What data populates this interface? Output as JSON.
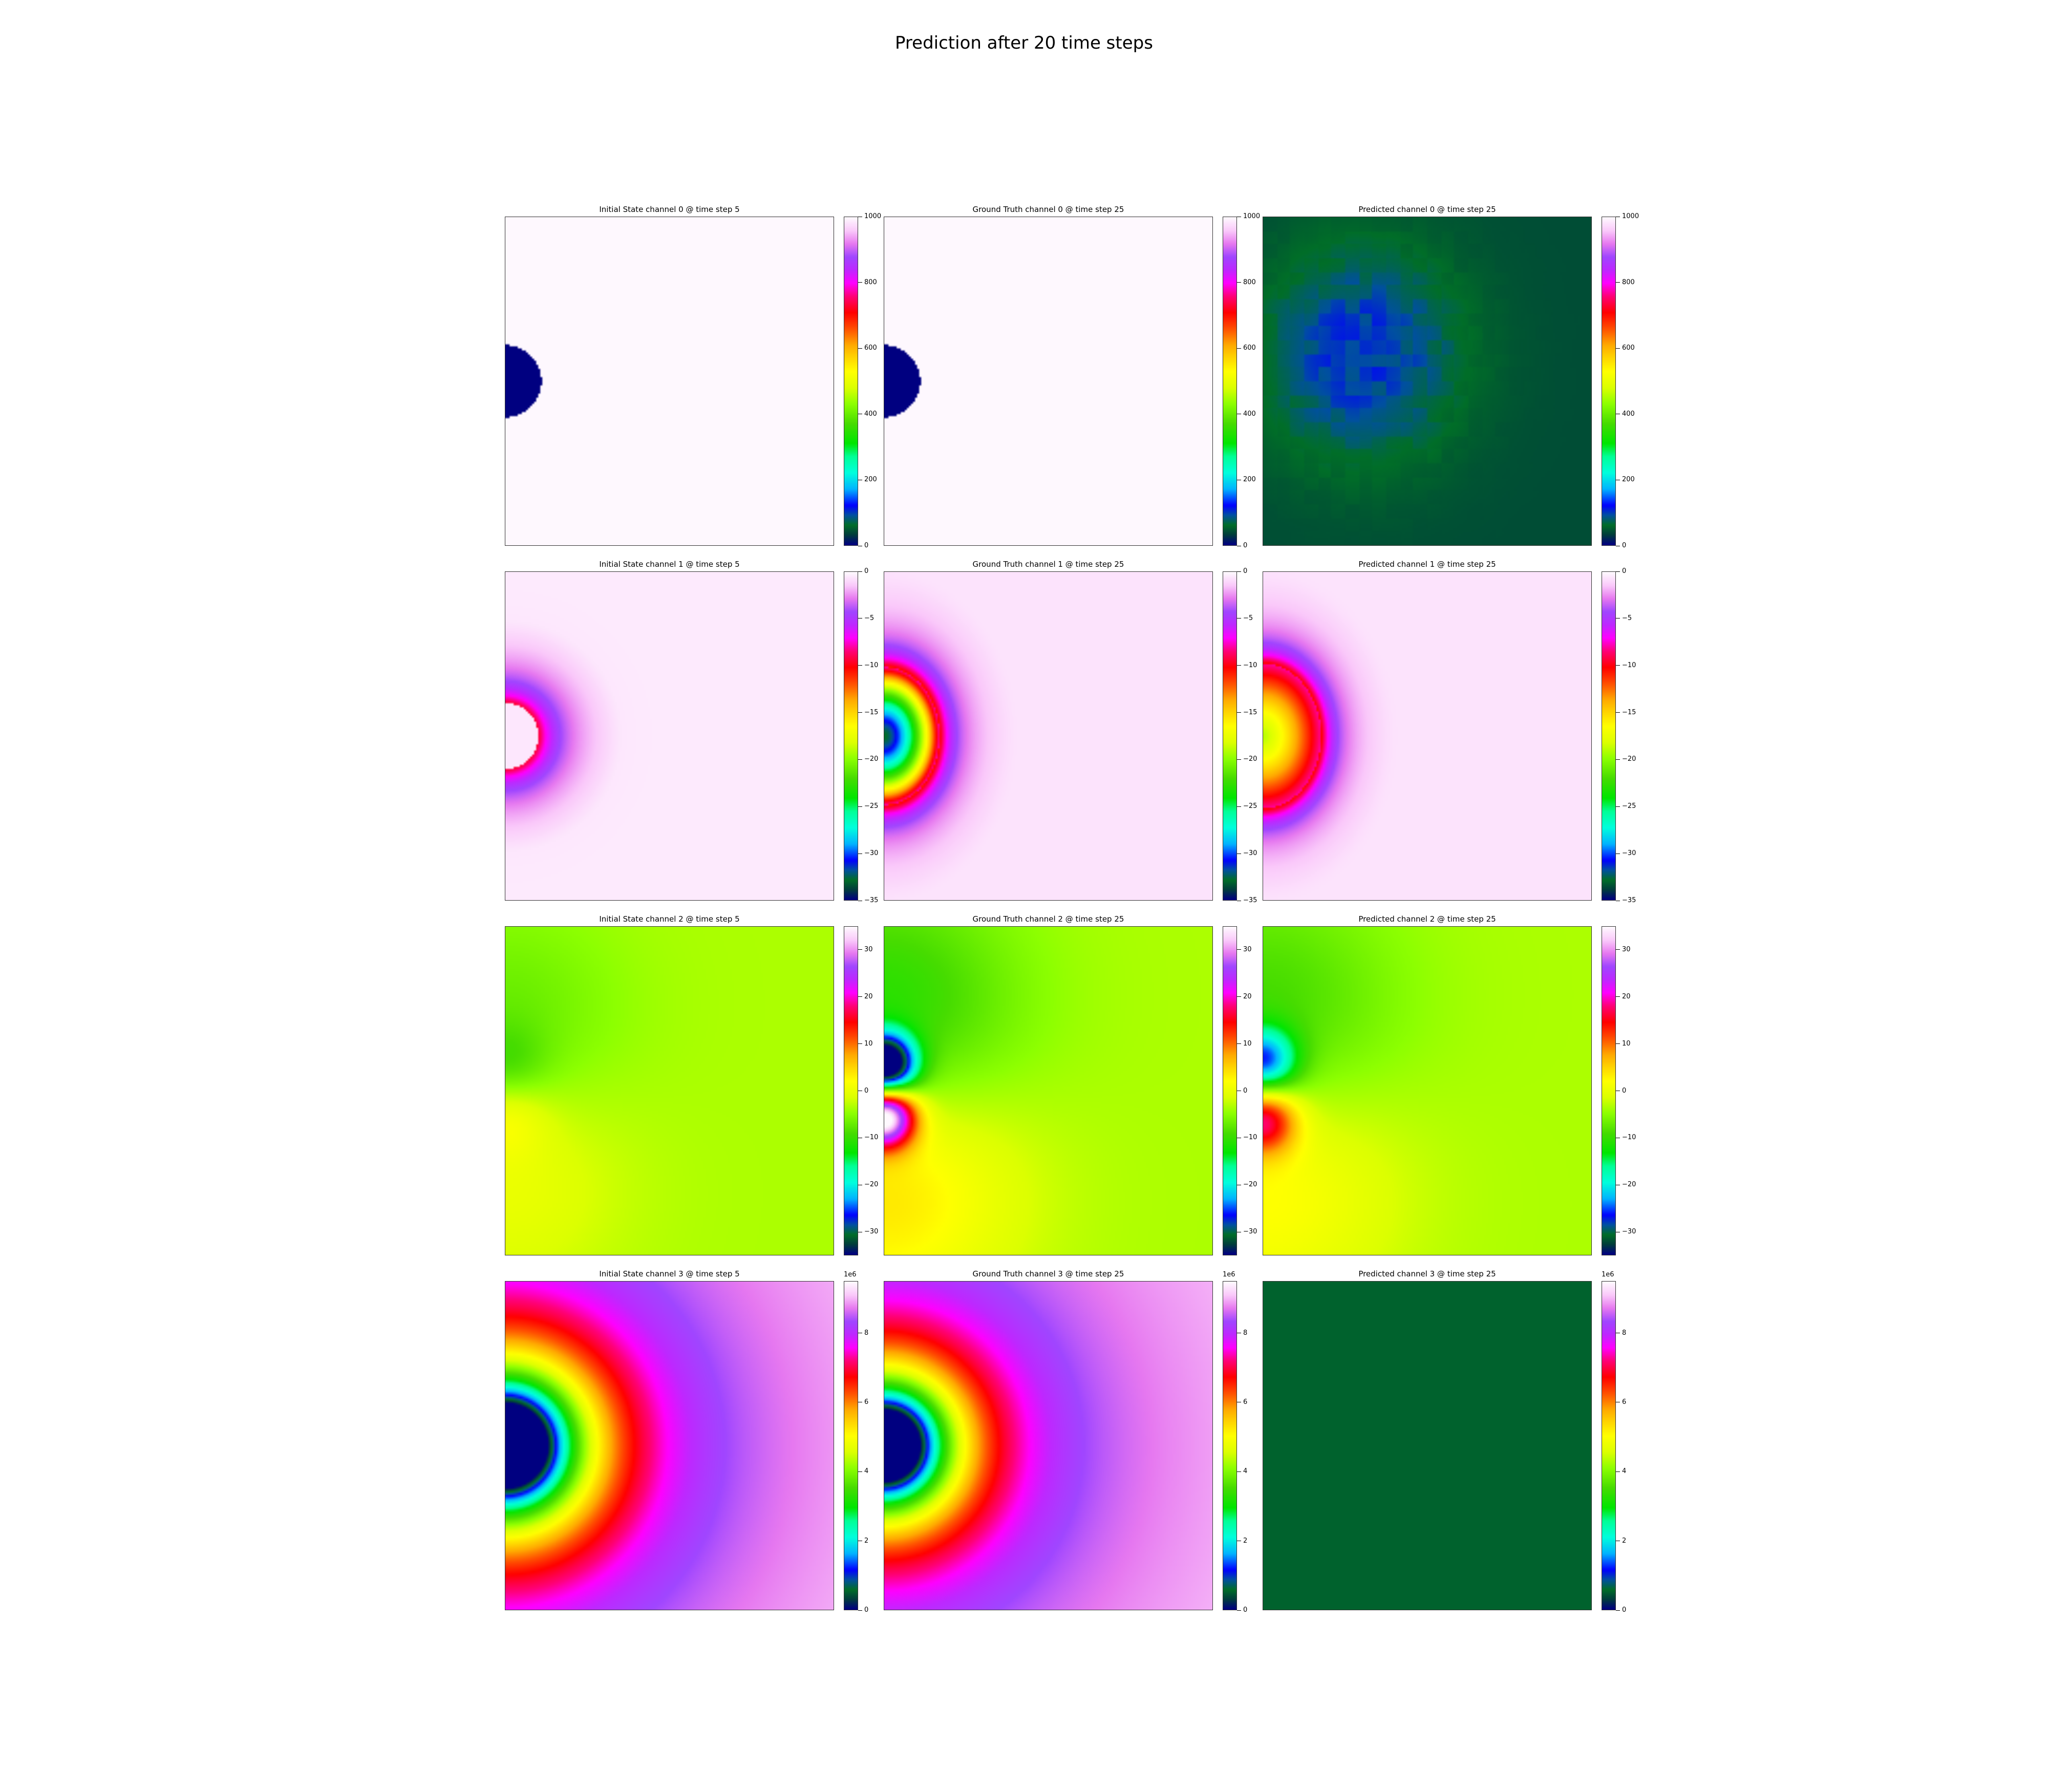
{
  "figure": {
    "title": "Prediction after 20 time steps"
  },
  "colors": {
    "colormap": "gist_ncar",
    "border": "#333333"
  },
  "chart_data": [
    {
      "type": "heatmap",
      "row": 0,
      "col": 0,
      "field": "disc",
      "title": "Initial State channel 0 @ time step 5",
      "colorbar": {
        "min": 0,
        "max": 1000,
        "ticks": [
          0,
          200,
          400,
          600,
          800,
          1000
        ],
        "tick_labels": [
          "0",
          "200",
          "400",
          "600",
          "800",
          "1000"
        ],
        "multiplier": ""
      },
      "params": {
        "inside": 0,
        "outside": 1000,
        "radius": 0.11
      }
    },
    {
      "type": "heatmap",
      "row": 0,
      "col": 1,
      "field": "disc",
      "title": "Ground Truth channel 0 @ time step 25",
      "colorbar": {
        "min": 0,
        "max": 1000,
        "ticks": [
          0,
          200,
          400,
          600,
          800,
          1000
        ],
        "tick_labels": [
          "0",
          "200",
          "400",
          "600",
          "800",
          "1000"
        ],
        "multiplier": ""
      },
      "params": {
        "inside": 0,
        "outside": 1000,
        "radius": 0.11
      }
    },
    {
      "type": "heatmap",
      "row": 0,
      "col": 2,
      "field": "dark_noisy",
      "title": "Predicted channel 0 @ time step 25",
      "colorbar": {
        "min": 0,
        "max": 1000,
        "ticks": [
          0,
          200,
          400,
          600,
          800,
          1000
        ],
        "tick_labels": [
          "0",
          "200",
          "400",
          "600",
          "800",
          "1000"
        ],
        "multiplier": ""
      },
      "params": {
        "base": 40,
        "peak": 120
      }
    },
    {
      "type": "heatmap",
      "row": 1,
      "col": 0,
      "field": "radial_dip",
      "title": "Initial State channel 1 @ time step 5",
      "colorbar": {
        "min": -35,
        "max": 0,
        "ticks": [
          -35,
          -30,
          -25,
          -20,
          -15,
          -10,
          -5,
          0
        ],
        "tick_labels": [
          "−35",
          "−30",
          "−25",
          "−20",
          "−15",
          "−10",
          "−5",
          "0"
        ],
        "multiplier": ""
      },
      "params": {
        "hole_radius": 0.1,
        "hole_value": -0.5,
        "peak": -7,
        "width": 0.06,
        "tail": 3.0,
        "tail_scale": 0.35
      }
    },
    {
      "type": "heatmap",
      "row": 1,
      "col": 1,
      "field": "radial_dip",
      "title": "Ground Truth channel 1 @ time step 25",
      "colorbar": {
        "min": -35,
        "max": 0,
        "ticks": [
          -35,
          -30,
          -25,
          -20,
          -15,
          -10,
          -5,
          0
        ],
        "tick_labels": [
          "−35",
          "−30",
          "−25",
          "−20",
          "−15",
          "−10",
          "−5",
          "0"
        ],
        "multiplier": ""
      },
      "params": {
        "core": -33,
        "core_radius": 0.21,
        "ring_shape": 1.6,
        "tail": 4.0,
        "tail_scale": 0.5
      }
    },
    {
      "type": "heatmap",
      "row": 1,
      "col": 2,
      "field": "radial_dip",
      "title": "Predicted channel 1 @ time step 25",
      "colorbar": {
        "min": -35,
        "max": 0,
        "ticks": [
          -35,
          -30,
          -25,
          -20,
          -15,
          -10,
          -5,
          0
        ],
        "tick_labels": [
          "−35",
          "−30",
          "−25",
          "−20",
          "−15",
          "−10",
          "−5",
          "0"
        ],
        "multiplier": ""
      },
      "params": {
        "core": -19,
        "core_radius": 0.22,
        "ring_shape": 1.3,
        "tail": 4.0,
        "tail_scale": 0.5
      }
    },
    {
      "type": "heatmap",
      "row": 2,
      "col": 0,
      "field": "dipole",
      "title": "Initial State channel 2 @ time step 5",
      "colorbar": {
        "min": -35,
        "max": 35,
        "ticks": [
          -30,
          -20,
          -10,
          0,
          10,
          20,
          30
        ],
        "tick_labels": [
          "−30",
          "−20",
          "−10",
          "0",
          "10",
          "20",
          "30"
        ],
        "multiplier": ""
      },
      "params": {
        "background": -3.5,
        "amp": 5,
        "width": 0.13,
        "offset": 0.06,
        "far_amp": 4,
        "far_width": 0.35
      }
    },
    {
      "type": "heatmap",
      "row": 2,
      "col": 1,
      "field": "dipole",
      "title": "Ground Truth channel 2 @ time step 25",
      "colorbar": {
        "min": -35,
        "max": 35,
        "ticks": [
          -30,
          -20,
          -10,
          0,
          10,
          20,
          30
        ],
        "tick_labels": [
          "−30",
          "−20",
          "−10",
          "0",
          "10",
          "20",
          "30"
        ],
        "multiplier": ""
      },
      "params": {
        "background": -3.5,
        "amp": 40,
        "width": 0.09,
        "offset": 0.08,
        "far_amp": 9,
        "far_width": 0.4
      }
    },
    {
      "type": "heatmap",
      "row": 2,
      "col": 2,
      "field": "dipole",
      "title": "Predicted channel 2 @ time step 25",
      "colorbar": {
        "min": -35,
        "max": 35,
        "ticks": [
          -30,
          -20,
          -10,
          0,
          10,
          20,
          30
        ],
        "tick_labels": [
          "−30",
          "−20",
          "−10",
          "0",
          "10",
          "20",
          "30"
        ],
        "multiplier": ""
      },
      "params": {
        "background": -3.5,
        "amp": 20,
        "width": 0.1,
        "offset": 0.09,
        "far_amp": 7,
        "far_width": 0.4
      }
    },
    {
      "type": "heatmap",
      "row": 3,
      "col": 0,
      "field": "radial_rings",
      "title": "Initial State channel 3 @ time step 5",
      "colorbar": {
        "min": 0,
        "max": 9.5,
        "ticks": [
          0,
          2,
          4,
          6,
          8
        ],
        "tick_labels": [
          "0",
          "2",
          "4",
          "6",
          "8"
        ],
        "multiplier": "1e6"
      },
      "params": {
        "hole_radius": 0.13,
        "vmax_far": 8.6,
        "grow": 0.55,
        "tail_after": 0.45,
        "tail_slope": 3.0
      }
    },
    {
      "type": "heatmap",
      "row": 3,
      "col": 1,
      "field": "radial_rings",
      "title": "Ground Truth channel 3 @ time step 25",
      "colorbar": {
        "min": 0,
        "max": 9.5,
        "ticks": [
          0,
          2,
          4,
          6,
          8
        ],
        "tick_labels": [
          "0",
          "2",
          "4",
          "6",
          "8"
        ],
        "multiplier": "1e6"
      },
      "params": {
        "hole_radius": 0.11,
        "vmax_far": 8.6,
        "grow": 0.5,
        "tail_after": 0.42,
        "tail_slope": 3.0
      }
    },
    {
      "type": "heatmap",
      "row": 3,
      "col": 2,
      "field": "uniform",
      "title": "Predicted channel 3 @ time step 25",
      "colorbar": {
        "min": 0,
        "max": 9.5,
        "ticks": [
          0,
          2,
          4,
          6,
          8
        ],
        "tick_labels": [
          "0",
          "2",
          "4",
          "6",
          "8"
        ],
        "multiplier": "1e6"
      },
      "params": {
        "value": 0.5
      }
    }
  ]
}
